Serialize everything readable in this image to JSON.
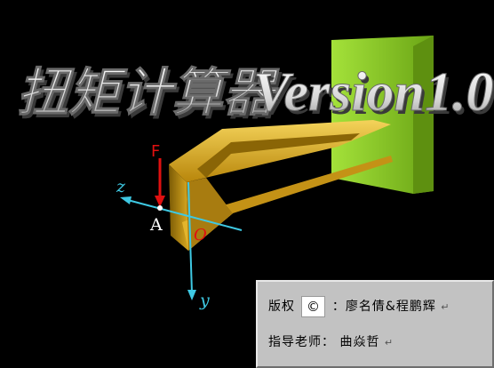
{
  "title": {
    "chinese": "扭矩计算器",
    "latin": "Version1.0"
  },
  "diagram": {
    "force_label": "F",
    "point_label": "A",
    "origin_label": "O",
    "z_axis_label": "z",
    "y_axis_label": "y"
  },
  "credits": {
    "copyright_label": "版权",
    "copyright_symbol": "©",
    "authors_label": "：廖名倩&程鹏辉",
    "advisor_label": "指导老师：",
    "advisor_name": "曲焱哲",
    "para_mark": "↵"
  },
  "colors": {
    "background": "#000000",
    "beam_gold": "#d7a81a",
    "wall_green": "#8ccf1e",
    "axis_cyan": "#3ec9e3",
    "force_red": "#e01010",
    "credit_panel": "#c2c2c2"
  }
}
